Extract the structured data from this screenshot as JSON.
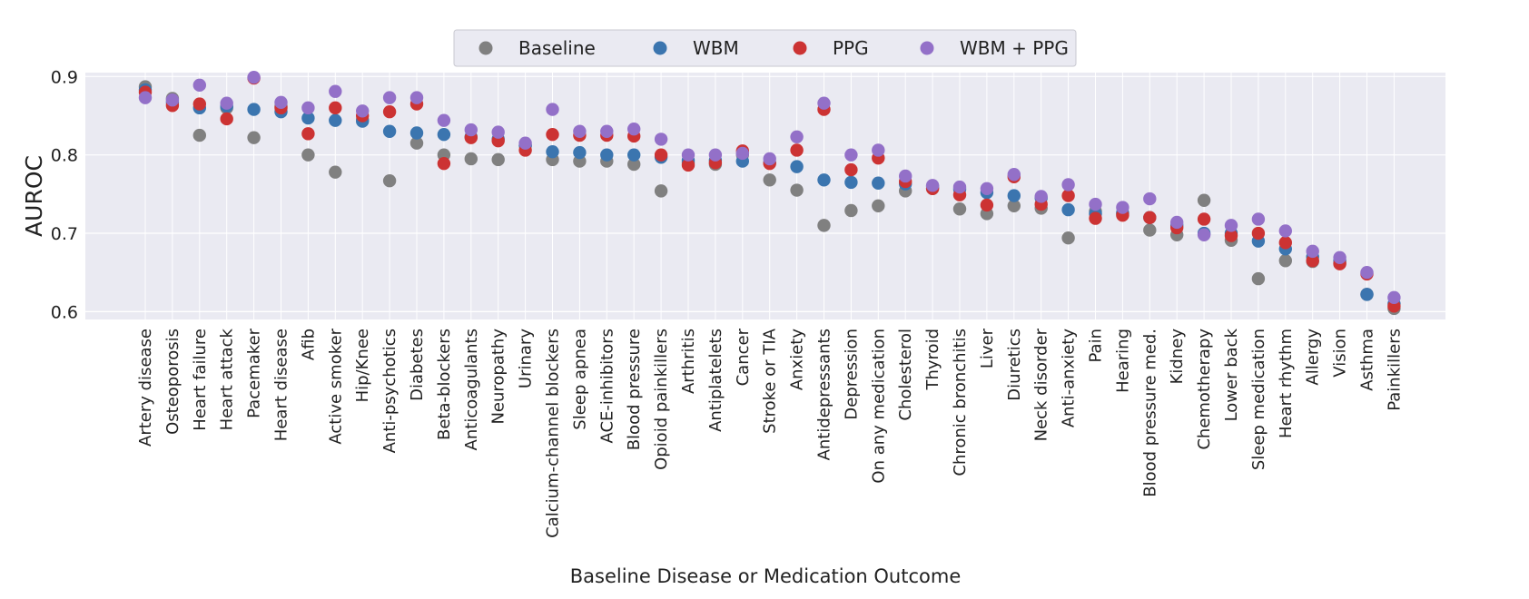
{
  "chart_data": {
    "type": "scatter",
    "xlabel": "Baseline Disease or Medication Outcome",
    "ylabel": "AUROC",
    "ylim": [
      0.59,
      0.905
    ],
    "yticks": [
      0.6,
      0.7,
      0.8,
      0.9
    ],
    "ytick_labels": [
      "0.6",
      "0.7",
      "0.8",
      "0.9"
    ],
    "grid": true,
    "legend_position": "top-center",
    "background_color": "#eaeaf2",
    "categories": [
      "Artery disease",
      "Osteoporosis",
      "Heart failure",
      "Heart attack",
      "Pacemaker",
      "Heart disease",
      "Afib",
      "Active smoker",
      "Hip/Knee",
      "Anti-psychotics",
      "Diabetes",
      "Beta-blockers",
      "Anticoagulants",
      "Neuropathy",
      "Urinary",
      "Calcium-channel blockers",
      "Sleep apnea",
      "ACE-inhibitors",
      "Blood pressure",
      "Opioid painkillers",
      "Arthritis",
      "Antiplatelets",
      "Cancer",
      "Stroke or TIA",
      "Anxiety",
      "Antidepressants",
      "Depression",
      "On any medication",
      "Cholesterol",
      "Thyroid",
      "Chronic bronchitis",
      "Liver",
      "Diuretics",
      "Neck disorder",
      "Anti-anxiety",
      "Pain",
      "Hearing",
      "Blood pressure med.",
      "Kidney",
      "Chemotherapy",
      "Lower back",
      "Sleep medication",
      "Heart rhythm",
      "Allergy",
      "Vision",
      "Asthma",
      "Painkillers"
    ],
    "series": [
      {
        "name": "Baseline",
        "color": "#808080",
        "values": [
          0.887,
          0.872,
          0.825,
          0.86,
          0.822,
          0.862,
          0.8,
          0.778,
          0.845,
          0.767,
          0.815,
          0.8,
          0.795,
          0.794,
          0.812,
          0.794,
          0.792,
          0.792,
          0.788,
          0.754,
          0.79,
          0.788,
          0.8,
          0.768,
          0.755,
          0.71,
          0.729,
          0.735,
          0.754,
          0.757,
          0.731,
          0.725,
          0.735,
          0.732,
          0.694,
          0.728,
          0.725,
          0.704,
          0.698,
          0.742,
          0.691,
          0.642,
          0.665,
          0.664,
          0.662,
          0.622,
          0.604
        ]
      },
      {
        "name": "WBM",
        "color": "#3b75af",
        "values": [
          0.883,
          0.867,
          0.86,
          0.862,
          0.858,
          0.855,
          0.847,
          0.844,
          0.843,
          0.83,
          0.828,
          0.826,
          0.823,
          0.82,
          0.812,
          0.804,
          0.803,
          0.8,
          0.8,
          0.797,
          0.793,
          0.793,
          0.792,
          0.79,
          0.785,
          0.768,
          0.765,
          0.764,
          0.763,
          0.76,
          0.756,
          0.752,
          0.748,
          0.745,
          0.73,
          0.725,
          0.726,
          0.72,
          0.71,
          0.7,
          0.7,
          0.69,
          0.68,
          0.67,
          0.665,
          0.622,
          0.61
        ]
      },
      {
        "name": "PPG",
        "color": "#cc3333",
        "values": [
          0.88,
          0.863,
          0.865,
          0.846,
          0.898,
          0.86,
          0.827,
          0.86,
          0.85,
          0.855,
          0.865,
          0.789,
          0.822,
          0.818,
          0.806,
          0.826,
          0.825,
          0.825,
          0.824,
          0.8,
          0.787,
          0.79,
          0.805,
          0.789,
          0.806,
          0.858,
          0.781,
          0.796,
          0.766,
          0.757,
          0.749,
          0.736,
          0.772,
          0.737,
          0.748,
          0.719,
          0.723,
          0.72,
          0.707,
          0.718,
          0.697,
          0.7,
          0.688,
          0.665,
          0.661,
          0.648,
          0.607
        ]
      },
      {
        "name": "WBM + PPG",
        "color": "#9370c8",
        "values": [
          0.873,
          0.87,
          0.889,
          0.866,
          0.899,
          0.867,
          0.86,
          0.881,
          0.856,
          0.873,
          0.873,
          0.844,
          0.832,
          0.829,
          0.815,
          0.858,
          0.83,
          0.83,
          0.833,
          0.82,
          0.8,
          0.8,
          0.802,
          0.795,
          0.823,
          0.866,
          0.8,
          0.806,
          0.773,
          0.761,
          0.759,
          0.757,
          0.775,
          0.747,
          0.762,
          0.737,
          0.733,
          0.744,
          0.714,
          0.698,
          0.71,
          0.718,
          0.703,
          0.677,
          0.669,
          0.65,
          0.618
        ]
      }
    ]
  }
}
